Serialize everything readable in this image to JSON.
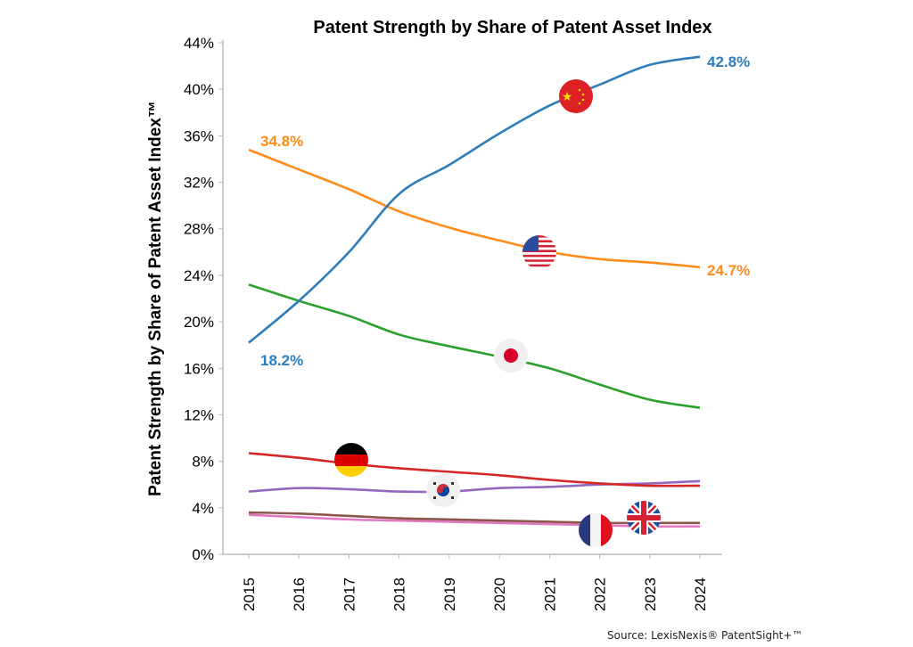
{
  "chart_data": {
    "type": "line",
    "title": "Patent Strength by Share of Patent Asset Index",
    "xlabel": "",
    "ylabel": "Patent Strength by Share of Patent Asset Index™",
    "x": [
      2015,
      2016,
      2017,
      2018,
      2019,
      2020,
      2021,
      2022,
      2023,
      2024
    ],
    "ylim": [
      0,
      44
    ],
    "yticks": [
      0,
      4,
      8,
      12,
      16,
      20,
      24,
      28,
      32,
      36,
      40,
      44
    ],
    "ytick_labels": [
      "0%",
      "4%",
      "8%",
      "12%",
      "16%",
      "20%",
      "24%",
      "28%",
      "32%",
      "36%",
      "40%",
      "44%"
    ],
    "grid": false,
    "legend": "none (flag icons mark series)",
    "series": [
      {
        "flag": "china",
        "color": "#2e7ebb",
        "values": [
          18.2,
          21.8,
          26.0,
          31.0,
          33.5,
          36.2,
          38.6,
          40.4,
          42.1,
          42.8
        ],
        "labels": {
          "start": "18.2%",
          "end": "42.8%"
        }
      },
      {
        "flag": "usa",
        "color": "#ff8c1a",
        "values": [
          34.8,
          33.1,
          31.4,
          29.5,
          28.1,
          27.0,
          26.0,
          25.4,
          25.1,
          24.7
        ],
        "labels": {
          "start": "34.8%",
          "end": "24.7%"
        }
      },
      {
        "flag": "japan",
        "color": "#2ca02c",
        "values": [
          23.2,
          21.8,
          20.5,
          18.9,
          17.9,
          17.0,
          16.0,
          14.6,
          13.3,
          12.6
        ]
      },
      {
        "flag": "germany",
        "color": "#d62728",
        "values": [
          8.7,
          8.3,
          7.8,
          7.4,
          7.1,
          6.8,
          6.4,
          6.1,
          5.9,
          5.9
        ]
      },
      {
        "flag": "south-korea",
        "color": "#9467bd",
        "values": [
          5.4,
          5.7,
          5.6,
          5.4,
          5.4,
          5.7,
          5.8,
          6.0,
          6.1,
          6.3
        ]
      },
      {
        "flag": "uk",
        "color": "#8c564b",
        "values": [
          3.6,
          3.5,
          3.3,
          3.1,
          3.0,
          2.9,
          2.8,
          2.7,
          2.7,
          2.7
        ]
      },
      {
        "flag": "france",
        "color": "#e377c2",
        "values": [
          3.4,
          3.2,
          3.0,
          2.9,
          2.8,
          2.7,
          2.6,
          2.5,
          2.4,
          2.4
        ]
      }
    ]
  },
  "source": "Source: LexisNexis® PatentSight+™"
}
